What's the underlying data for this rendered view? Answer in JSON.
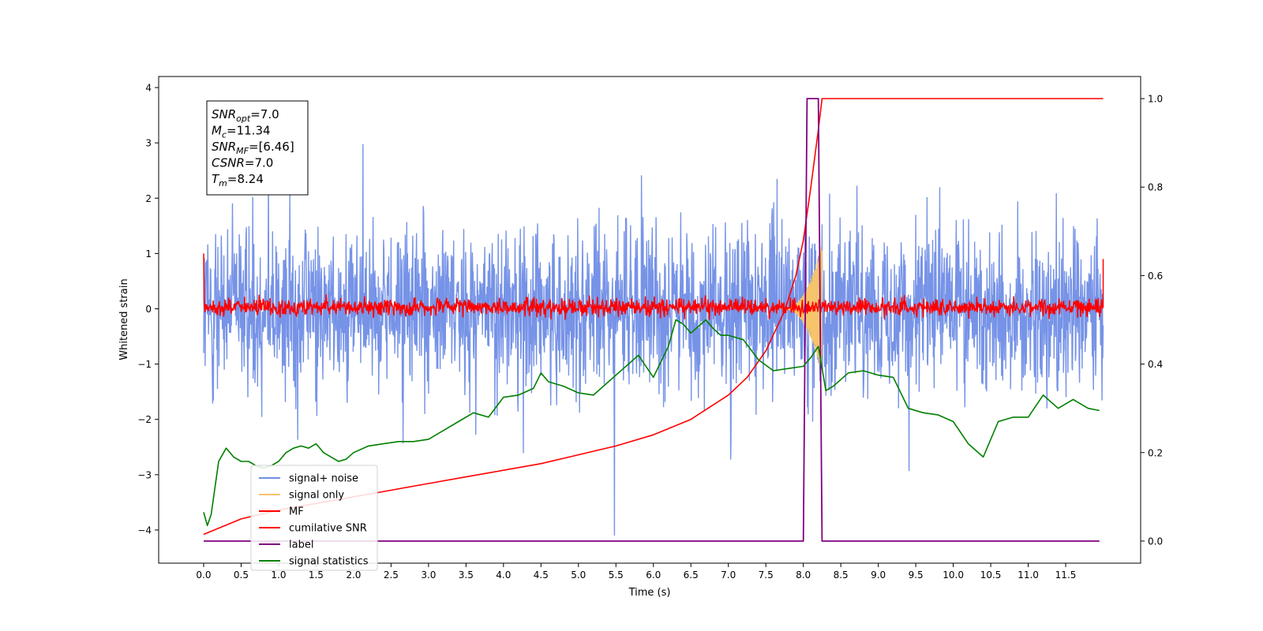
{
  "chart_data": {
    "type": "line",
    "xlabel": "Time (s)",
    "ylabel": "Whitened strain",
    "xlim": [
      -0.6,
      12.5
    ],
    "ylim": [
      -4.6,
      4.2
    ],
    "y2lim": [
      -0.05,
      1.05
    ],
    "x_ticks": [
      0.0,
      0.5,
      1.0,
      1.5,
      2.0,
      2.5,
      3.0,
      3.5,
      4.0,
      4.5,
      5.0,
      5.5,
      6.0,
      6.5,
      7.0,
      7.5,
      8.0,
      8.5,
      9.0,
      9.5,
      10.0,
      10.5,
      11.0,
      11.5
    ],
    "x_tick_labels": [
      "0.0",
      "0.5",
      "1.0",
      "1.5",
      "2.0",
      "2.5",
      "3.0",
      "3.5",
      "4.0",
      "4.5",
      "5.0",
      "5.5",
      "6.0",
      "6.5",
      "7.0",
      "7.5",
      "8.0",
      "8.5",
      "9.0",
      "9.5",
      "10.0",
      "10.5",
      "11.0",
      "11.5"
    ],
    "y_ticks": [
      -4,
      -3,
      -2,
      -1,
      0,
      1,
      2,
      3,
      4
    ],
    "y_tick_labels": [
      "−4",
      "−3",
      "−2",
      "−1",
      "0",
      "1",
      "2",
      "3",
      "4"
    ],
    "y2_ticks": [
      0.0,
      0.2,
      0.4,
      0.6,
      0.8,
      1.0
    ],
    "y2_tick_labels": [
      "0.0",
      "0.2",
      "0.4",
      "0.6",
      "0.8",
      "1.0"
    ],
    "grid": false,
    "legend_position": "lower-left",
    "annotation": [
      {
        "sym": "SNR",
        "sub": "opt",
        "val": "=7.0"
      },
      {
        "sym": "M",
        "sub": "c",
        "val": "=11.34"
      },
      {
        "sym": "SNR",
        "sub": "MF",
        "val": "=[6.46]"
      },
      {
        "sym": "CSNR",
        "sub": "",
        "val": "=7.0"
      },
      {
        "sym": "T",
        "sub": "m",
        "val": "=8.24"
      }
    ],
    "series": [
      {
        "name": "signal+ noise",
        "color": "#6f8de6",
        "axis": "left",
        "x_range": [
          0,
          12
        ],
        "band": [
          -2.2,
          2.2
        ],
        "peak_range": [
          -4.1,
          3.8
        ]
      },
      {
        "name": "signal only",
        "color": "#f5c46b",
        "axis": "left",
        "x_range": [
          7.7,
          8.25
        ],
        "max_amplitude": 1.2
      },
      {
        "name": "MF",
        "color": "#ff0000",
        "axis": "left",
        "x_range": [
          0,
          12
        ],
        "band": [
          -0.25,
          0.3
        ],
        "start_value": 1.0,
        "end_value": 0.9
      },
      {
        "name": "cumilative SNR",
        "color": "#ff0000",
        "axis": "right",
        "x": [
          0.0,
          0.5,
          1.0,
          1.5,
          2.0,
          2.5,
          3.0,
          3.5,
          4.0,
          4.5,
          5.0,
          5.5,
          6.0,
          6.5,
          7.0,
          7.25,
          7.5,
          7.75,
          7.9,
          8.0,
          8.1,
          8.2,
          8.25,
          12.0
        ],
        "y": [
          0.015,
          0.05,
          0.07,
          0.085,
          0.1,
          0.115,
          0.13,
          0.145,
          0.16,
          0.175,
          0.195,
          0.215,
          0.24,
          0.275,
          0.33,
          0.37,
          0.43,
          0.52,
          0.6,
          0.68,
          0.8,
          0.93,
          1.0,
          1.0
        ]
      },
      {
        "name": "label",
        "color": "#800080",
        "axis": "right",
        "x": [
          0.0,
          8.0,
          8.05,
          8.2,
          8.25,
          11.95
        ],
        "y": [
          0.0,
          0.0,
          1.0,
          1.0,
          0.0,
          0.0
        ]
      },
      {
        "name": "signal statistics",
        "color": "#008000",
        "axis": "right",
        "x": [
          0.0,
          0.05,
          0.1,
          0.2,
          0.3,
          0.4,
          0.5,
          0.6,
          0.7,
          0.8,
          0.9,
          1.0,
          1.1,
          1.2,
          1.3,
          1.4,
          1.5,
          1.6,
          1.7,
          1.8,
          1.9,
          2.0,
          2.2,
          2.4,
          2.6,
          2.8,
          3.0,
          3.2,
          3.4,
          3.6,
          3.8,
          4.0,
          4.2,
          4.4,
          4.5,
          4.6,
          4.8,
          5.0,
          5.2,
          5.4,
          5.6,
          5.8,
          6.0,
          6.2,
          6.3,
          6.4,
          6.5,
          6.6,
          6.7,
          6.8,
          6.9,
          7.0,
          7.2,
          7.4,
          7.6,
          7.8,
          8.0,
          8.1,
          8.2,
          8.3,
          8.4,
          8.6,
          8.8,
          9.0,
          9.2,
          9.4,
          9.6,
          9.8,
          10.0,
          10.2,
          10.4,
          10.6,
          10.8,
          11.0,
          11.2,
          11.4,
          11.6,
          11.8,
          11.95
        ],
        "y": [
          0.065,
          0.035,
          0.06,
          0.18,
          0.21,
          0.19,
          0.18,
          0.18,
          0.17,
          0.165,
          0.17,
          0.18,
          0.2,
          0.21,
          0.215,
          0.21,
          0.22,
          0.2,
          0.19,
          0.18,
          0.185,
          0.2,
          0.215,
          0.22,
          0.225,
          0.225,
          0.23,
          0.25,
          0.27,
          0.29,
          0.28,
          0.325,
          0.33,
          0.345,
          0.38,
          0.36,
          0.35,
          0.335,
          0.33,
          0.36,
          0.39,
          0.42,
          0.37,
          0.44,
          0.5,
          0.49,
          0.47,
          0.485,
          0.5,
          0.48,
          0.465,
          0.465,
          0.455,
          0.41,
          0.385,
          0.39,
          0.395,
          0.415,
          0.44,
          0.34,
          0.35,
          0.38,
          0.385,
          0.375,
          0.37,
          0.3,
          0.29,
          0.285,
          0.27,
          0.22,
          0.19,
          0.27,
          0.28,
          0.28,
          0.33,
          0.3,
          0.32,
          0.3,
          0.295
        ]
      }
    ]
  }
}
